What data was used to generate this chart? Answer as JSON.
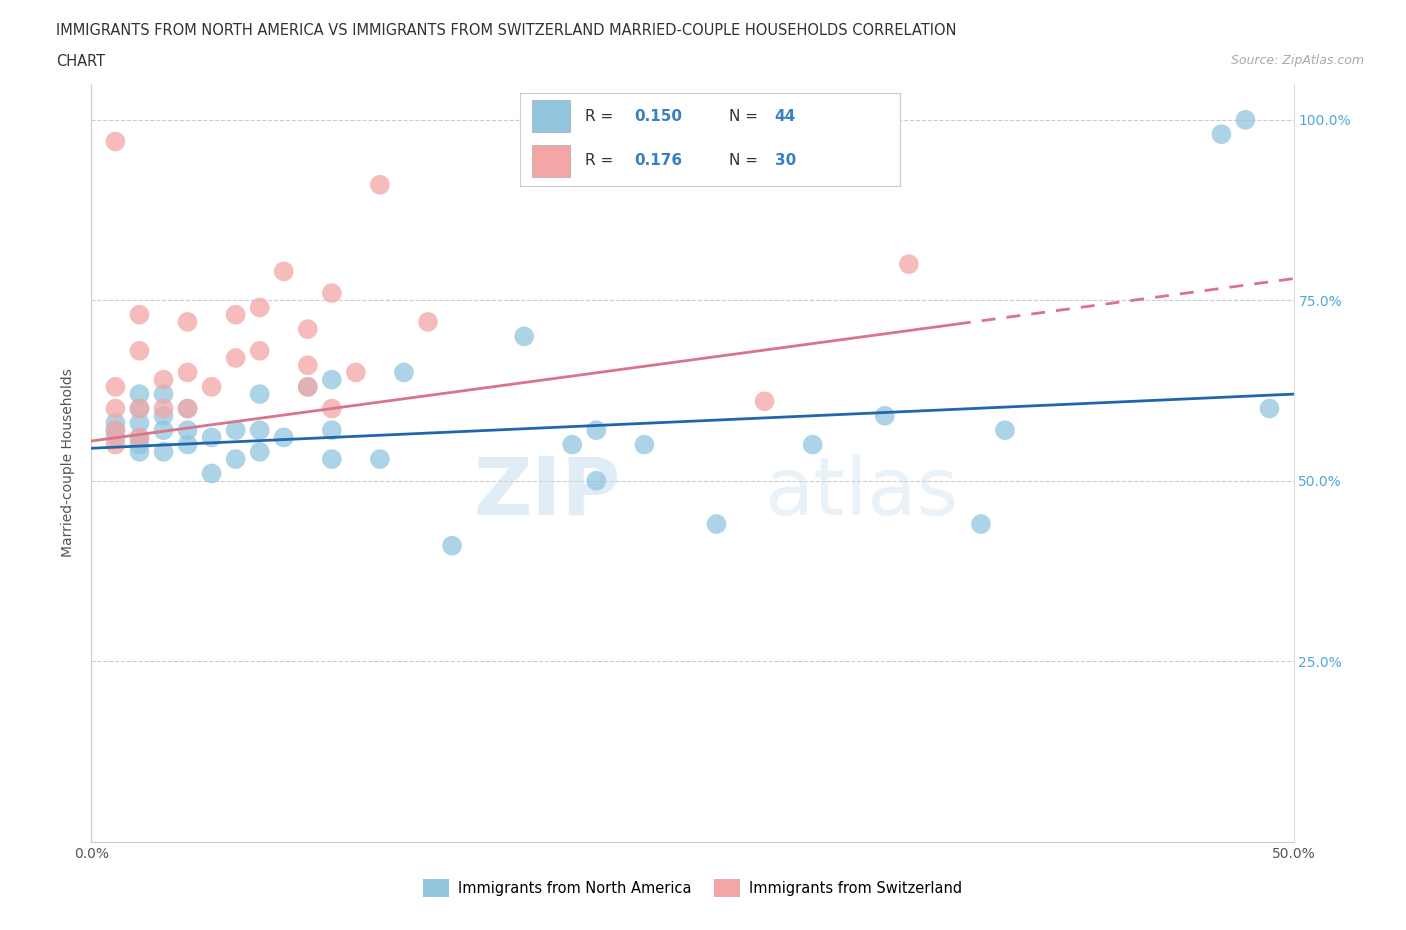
{
  "title_line1": "IMMIGRANTS FROM NORTH AMERICA VS IMMIGRANTS FROM SWITZERLAND MARRIED-COUPLE HOUSEHOLDS CORRELATION",
  "title_line2": "CHART",
  "source_text": "Source: ZipAtlas.com",
  "ylabel": "Married-couple Households",
  "xlim": [
    0.0,
    0.5
  ],
  "ylim": [
    0.0,
    1.05
  ],
  "blue_color": "#92c5de",
  "pink_color": "#f4a6a6",
  "blue_line_color": "#2166ac",
  "pink_line_color": "#d9748a",
  "watermark_zip": "ZIP",
  "watermark_atlas": "atlas",
  "legend_color": "#3a7fc1",
  "background_color": "#ffffff",
  "blue_scatter_x": [
    0.01,
    0.01,
    0.01,
    0.02,
    0.02,
    0.02,
    0.02,
    0.02,
    0.02,
    0.03,
    0.03,
    0.03,
    0.03,
    0.04,
    0.04,
    0.04,
    0.05,
    0.05,
    0.06,
    0.06,
    0.07,
    0.07,
    0.07,
    0.08,
    0.09,
    0.1,
    0.1,
    0.1,
    0.12,
    0.13,
    0.15,
    0.18,
    0.2,
    0.21,
    0.21,
    0.23,
    0.26,
    0.3,
    0.33,
    0.37,
    0.38,
    0.47,
    0.48,
    0.49
  ],
  "blue_scatter_y": [
    0.56,
    0.57,
    0.58,
    0.54,
    0.55,
    0.56,
    0.58,
    0.6,
    0.62,
    0.54,
    0.57,
    0.59,
    0.62,
    0.55,
    0.57,
    0.6,
    0.51,
    0.56,
    0.53,
    0.57,
    0.54,
    0.57,
    0.62,
    0.56,
    0.63,
    0.53,
    0.57,
    0.64,
    0.53,
    0.65,
    0.41,
    0.7,
    0.55,
    0.5,
    0.57,
    0.55,
    0.44,
    0.55,
    0.59,
    0.44,
    0.57,
    0.98,
    1.0,
    0.6
  ],
  "pink_scatter_x": [
    0.01,
    0.01,
    0.01,
    0.01,
    0.01,
    0.02,
    0.02,
    0.02,
    0.02,
    0.03,
    0.03,
    0.04,
    0.04,
    0.04,
    0.05,
    0.06,
    0.06,
    0.07,
    0.07,
    0.08,
    0.09,
    0.09,
    0.09,
    0.1,
    0.1,
    0.11,
    0.12,
    0.14,
    0.28,
    0.34
  ],
  "pink_scatter_y": [
    0.55,
    0.57,
    0.6,
    0.63,
    0.97,
    0.56,
    0.6,
    0.68,
    0.73,
    0.6,
    0.64,
    0.6,
    0.65,
    0.72,
    0.63,
    0.67,
    0.73,
    0.68,
    0.74,
    0.79,
    0.63,
    0.66,
    0.71,
    0.6,
    0.76,
    0.65,
    0.91,
    0.72,
    0.61,
    0.8
  ],
  "blue_trend": [
    0.545,
    0.62
  ],
  "pink_trend": [
    0.555,
    0.78
  ],
  "pink_dashed_trend": [
    0.735,
    0.82
  ]
}
